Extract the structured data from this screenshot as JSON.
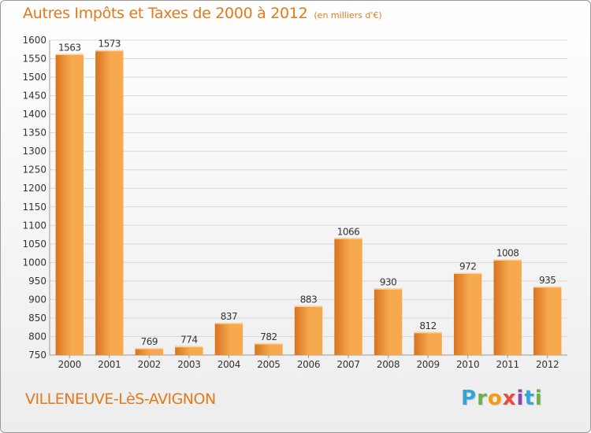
{
  "header": {
    "title": "Autres Impôts et Taxes de 2000 à 2012",
    "subtitle": "(en milliers d'€)"
  },
  "footer": {
    "city": "VILLENEUVE-LèS-AVIGNON",
    "logo": {
      "letters": [
        "P",
        "r",
        "o",
        "x",
        "i",
        "t",
        "i"
      ],
      "colors": [
        "#3aa3d6",
        "#6ab04c",
        "#f39c12",
        "#e74c3c",
        "#8e44ad",
        "#3aa3d6",
        "#6ab04c"
      ]
    }
  },
  "colors": {
    "bar_light": "#f7a94e",
    "bar_dark": "#d9741f",
    "text": "#e07a1c",
    "grid": "#d8d8d8"
  },
  "chart_data": {
    "type": "bar",
    "title": "Autres Impôts et Taxes de 2000 à 2012",
    "subtitle": "(en milliers d'€)",
    "categories": [
      "2000",
      "2001",
      "2002",
      "2003",
      "2004",
      "2005",
      "2006",
      "2007",
      "2008",
      "2009",
      "2010",
      "2011",
      "2012"
    ],
    "values": [
      1563,
      1573,
      769,
      774,
      837,
      782,
      883,
      1066,
      930,
      812,
      972,
      1008,
      935
    ],
    "ylim": [
      750,
      1600
    ],
    "yticks": [
      750,
      800,
      850,
      900,
      950,
      1000,
      1050,
      1100,
      1150,
      1200,
      1250,
      1300,
      1350,
      1400,
      1450,
      1500,
      1550,
      1600
    ],
    "grid": true,
    "data_labels": true
  }
}
